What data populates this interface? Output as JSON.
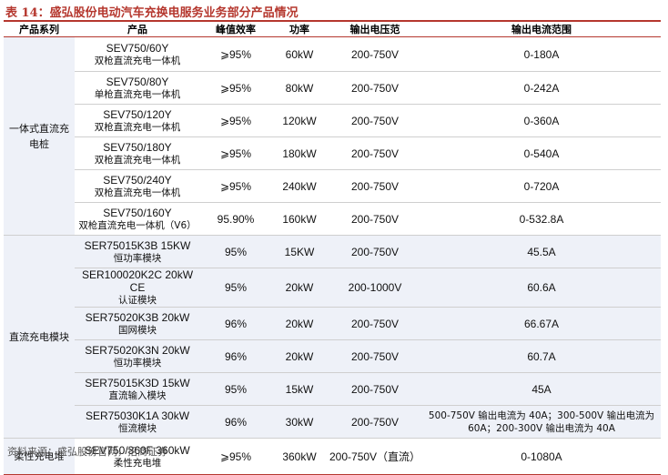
{
  "title": "表 14：盛弘股份电动汽车充换电服务业务部分产品情况",
  "headers": [
    "产品系列",
    "产品",
    "峰值效率",
    "功率",
    "输出电压范",
    "输出电流范围"
  ],
  "groups": [
    {
      "series": "一体式直流充电桩",
      "rows": [
        {
          "name": "SEV750/60Y",
          "desc": "双枪直流充电一体机",
          "eff": "⩾95%",
          "power": "60kW",
          "voltage": "200-750V",
          "current": "0-180A"
        },
        {
          "name": "SEV750/80Y",
          "desc": "单枪直流充电一体机",
          "eff": "⩾95%",
          "power": "80kW",
          "voltage": "200-750V",
          "current": "0-242A"
        },
        {
          "name": "SEV750/120Y",
          "desc": "双枪直流充电一体机",
          "eff": "⩾95%",
          "power": "120kW",
          "voltage": "200-750V",
          "current": "0-360A"
        },
        {
          "name": "SEV750/180Y",
          "desc": "双枪直流充电一体机",
          "eff": "⩾95%",
          "power": "180kW",
          "voltage": "200-750V",
          "current": "0-540A"
        },
        {
          "name": "SEV750/240Y",
          "desc": "双枪直流充电一体机",
          "eff": "⩾95%",
          "power": "240kW",
          "voltage": "200-750V",
          "current": "0-720A"
        },
        {
          "name": "SEV750/160Y",
          "desc": "双枪直流充电一体机（V6）",
          "eff": "95.90%",
          "power": "160kW",
          "voltage": "200-750V",
          "current": "0-532.8A"
        }
      ]
    },
    {
      "series": "直流充电模块",
      "rows": [
        {
          "name": "SER75015K3B 15KW",
          "desc": "恒功率模块",
          "eff": "95%",
          "power": "15KW",
          "voltage": "200-750V",
          "current": "45.5A"
        },
        {
          "name": "SER100020K2C 20kW CE",
          "desc": "认证模块",
          "eff": "95%",
          "power": "20kW",
          "voltage": "200-1000V",
          "current": "60.6A"
        },
        {
          "name": "SER75020K3B 20kW",
          "desc": "国网模块",
          "eff": "96%",
          "power": "20kW",
          "voltage": "200-750V",
          "current": "66.67A"
        },
        {
          "name": "SER75020K3N 20kW",
          "desc": "恒功率模块",
          "eff": "96%",
          "power": "20kW",
          "voltage": "200-750V",
          "current": "60.7A"
        },
        {
          "name": "SER75015K3D 15kW",
          "desc": "直流输入模块",
          "eff": "95%",
          "power": "15kW",
          "voltage": "200-750V",
          "current": "45A"
        },
        {
          "name": "SER75030K1A 30kW",
          "desc": "恒流模块",
          "eff": "96%",
          "power": "30kW",
          "voltage": "200-750V",
          "current": "500-750V 输出电流为 40A；300-500V 输出电流为 60A；200-300V 输出电流为 40A"
        }
      ]
    },
    {
      "series": "柔性充电堆",
      "rows": [
        {
          "name": "SEV750/360F 360kW",
          "desc": "柔性充电堆",
          "eff": "⩾95%",
          "power": "360kW",
          "voltage": "200-750V（直流）",
          "current": "0-1080A"
        }
      ]
    }
  ],
  "source": "资料来源：盛弘股份官网，招商证券"
}
